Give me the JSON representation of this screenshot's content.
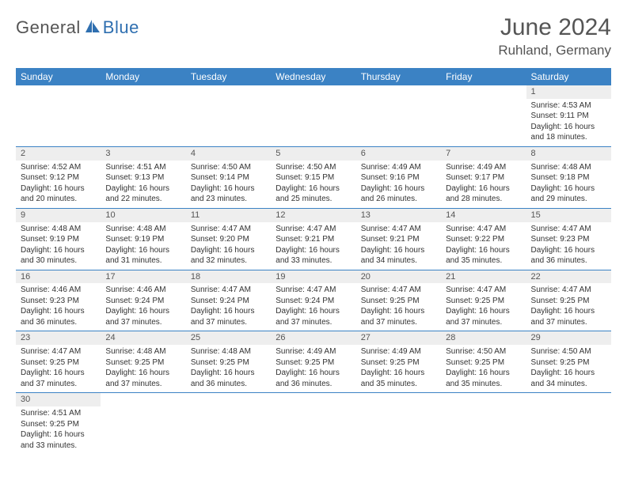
{
  "logo": {
    "part1": "General",
    "part2": "Blue"
  },
  "title": "June 2024",
  "location": "Ruhland, Germany",
  "colors": {
    "header_bg": "#3b82c4",
    "header_text": "#ffffff",
    "daynum_bg": "#eeeeee",
    "text": "#333333",
    "rule": "#3b82c4",
    "logo_gray": "#555555",
    "logo_blue": "#2f6fb0"
  },
  "weekdays": [
    "Sunday",
    "Monday",
    "Tuesday",
    "Wednesday",
    "Thursday",
    "Friday",
    "Saturday"
  ],
  "weeks": [
    {
      "nums": [
        "",
        "",
        "",
        "",
        "",
        "",
        "1"
      ],
      "cells": [
        null,
        null,
        null,
        null,
        null,
        null,
        {
          "sunrise": "4:53 AM",
          "sunset": "9:11 PM",
          "daylight": "16 hours and 18 minutes."
        }
      ]
    },
    {
      "nums": [
        "2",
        "3",
        "4",
        "5",
        "6",
        "7",
        "8"
      ],
      "cells": [
        {
          "sunrise": "4:52 AM",
          "sunset": "9:12 PM",
          "daylight": "16 hours and 20 minutes."
        },
        {
          "sunrise": "4:51 AM",
          "sunset": "9:13 PM",
          "daylight": "16 hours and 22 minutes."
        },
        {
          "sunrise": "4:50 AM",
          "sunset": "9:14 PM",
          "daylight": "16 hours and 23 minutes."
        },
        {
          "sunrise": "4:50 AM",
          "sunset": "9:15 PM",
          "daylight": "16 hours and 25 minutes."
        },
        {
          "sunrise": "4:49 AM",
          "sunset": "9:16 PM",
          "daylight": "16 hours and 26 minutes."
        },
        {
          "sunrise": "4:49 AM",
          "sunset": "9:17 PM",
          "daylight": "16 hours and 28 minutes."
        },
        {
          "sunrise": "4:48 AM",
          "sunset": "9:18 PM",
          "daylight": "16 hours and 29 minutes."
        }
      ]
    },
    {
      "nums": [
        "9",
        "10",
        "11",
        "12",
        "13",
        "14",
        "15"
      ],
      "cells": [
        {
          "sunrise": "4:48 AM",
          "sunset": "9:19 PM",
          "daylight": "16 hours and 30 minutes."
        },
        {
          "sunrise": "4:48 AM",
          "sunset": "9:19 PM",
          "daylight": "16 hours and 31 minutes."
        },
        {
          "sunrise": "4:47 AM",
          "sunset": "9:20 PM",
          "daylight": "16 hours and 32 minutes."
        },
        {
          "sunrise": "4:47 AM",
          "sunset": "9:21 PM",
          "daylight": "16 hours and 33 minutes."
        },
        {
          "sunrise": "4:47 AM",
          "sunset": "9:21 PM",
          "daylight": "16 hours and 34 minutes."
        },
        {
          "sunrise": "4:47 AM",
          "sunset": "9:22 PM",
          "daylight": "16 hours and 35 minutes."
        },
        {
          "sunrise": "4:47 AM",
          "sunset": "9:23 PM",
          "daylight": "16 hours and 36 minutes."
        }
      ]
    },
    {
      "nums": [
        "16",
        "17",
        "18",
        "19",
        "20",
        "21",
        "22"
      ],
      "cells": [
        {
          "sunrise": "4:46 AM",
          "sunset": "9:23 PM",
          "daylight": "16 hours and 36 minutes."
        },
        {
          "sunrise": "4:46 AM",
          "sunset": "9:24 PM",
          "daylight": "16 hours and 37 minutes."
        },
        {
          "sunrise": "4:47 AM",
          "sunset": "9:24 PM",
          "daylight": "16 hours and 37 minutes."
        },
        {
          "sunrise": "4:47 AM",
          "sunset": "9:24 PM",
          "daylight": "16 hours and 37 minutes."
        },
        {
          "sunrise": "4:47 AM",
          "sunset": "9:25 PM",
          "daylight": "16 hours and 37 minutes."
        },
        {
          "sunrise": "4:47 AM",
          "sunset": "9:25 PM",
          "daylight": "16 hours and 37 minutes."
        },
        {
          "sunrise": "4:47 AM",
          "sunset": "9:25 PM",
          "daylight": "16 hours and 37 minutes."
        }
      ]
    },
    {
      "nums": [
        "23",
        "24",
        "25",
        "26",
        "27",
        "28",
        "29"
      ],
      "cells": [
        {
          "sunrise": "4:47 AM",
          "sunset": "9:25 PM",
          "daylight": "16 hours and 37 minutes."
        },
        {
          "sunrise": "4:48 AM",
          "sunset": "9:25 PM",
          "daylight": "16 hours and 37 minutes."
        },
        {
          "sunrise": "4:48 AM",
          "sunset": "9:25 PM",
          "daylight": "16 hours and 36 minutes."
        },
        {
          "sunrise": "4:49 AM",
          "sunset": "9:25 PM",
          "daylight": "16 hours and 36 minutes."
        },
        {
          "sunrise": "4:49 AM",
          "sunset": "9:25 PM",
          "daylight": "16 hours and 35 minutes."
        },
        {
          "sunrise": "4:50 AM",
          "sunset": "9:25 PM",
          "daylight": "16 hours and 35 minutes."
        },
        {
          "sunrise": "4:50 AM",
          "sunset": "9:25 PM",
          "daylight": "16 hours and 34 minutes."
        }
      ]
    },
    {
      "nums": [
        "30",
        "",
        "",
        "",
        "",
        "",
        ""
      ],
      "cells": [
        {
          "sunrise": "4:51 AM",
          "sunset": "9:25 PM",
          "daylight": "16 hours and 33 minutes."
        },
        null,
        null,
        null,
        null,
        null,
        null
      ]
    }
  ],
  "labels": {
    "sunrise": "Sunrise: ",
    "sunset": "Sunset: ",
    "daylight": "Daylight: "
  }
}
